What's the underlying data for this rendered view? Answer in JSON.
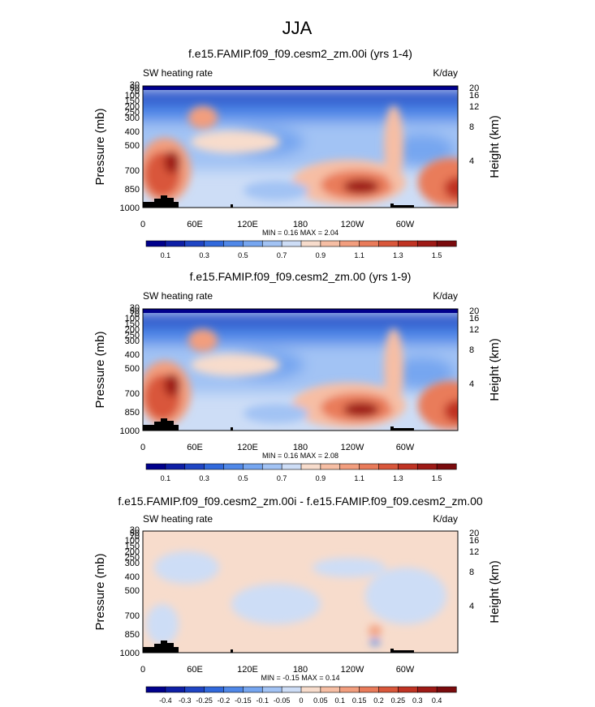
{
  "figure_title": "JJA",
  "chart_data": [
    {
      "type": "heatmap",
      "title": "f.e15.FAMIP.f09_f09.cesm2_zm.00i (yrs 1-4)",
      "left_label": "SW heating rate",
      "units": "K/day",
      "xlabel": "",
      "ylabel": "Pressure (mb)",
      "y2label": "Height (km)",
      "xlim": [
        0,
        360
      ],
      "ylim": [
        1000,
        10
      ],
      "xticks": [
        "0",
        "60E",
        "120E",
        "180",
        "120W",
        "60W"
      ],
      "yticks": [
        "1000",
        "850",
        "700",
        "500",
        "400",
        "300",
        "250",
        "200",
        "150",
        "100",
        "70",
        "50",
        "30"
      ],
      "y2ticks": [
        "4",
        "8",
        "12",
        "16",
        "20"
      ],
      "stats": "MIN =   0.16  MAX =   2.04",
      "min": 0.16,
      "max": 2.04,
      "colorbar": {
        "labels": [
          "0.1",
          "0.3",
          "0.5",
          "0.7",
          "0.9",
          "1.1",
          "1.3",
          "1.5"
        ],
        "levels": [
          0.1,
          0.2,
          0.3,
          0.4,
          0.5,
          0.6,
          0.7,
          0.8,
          0.9,
          1.0,
          1.1,
          1.2,
          1.3,
          1.4,
          1.5
        ],
        "colors": [
          "#00008c",
          "#0e1fa6",
          "#1f45c4",
          "#3169dc",
          "#5088e8",
          "#76a6f0",
          "#a2c3f4",
          "#cdddf6",
          "#f7dccc",
          "#f6bea4",
          "#f29e7e",
          "#e97b5a",
          "#d9573b",
          "#c03323",
          "#9e1a16",
          "#7a0b0d"
        ]
      },
      "features": [
        {
          "desc": "stratospheric layer",
          "lon": [
            0,
            360
          ],
          "p": [
            30,
            110
          ],
          "value": 0.15
        },
        {
          "desc": "upper troposphere",
          "lon": [
            0,
            360
          ],
          "p": [
            110,
            250
          ],
          "value": 0.45
        },
        {
          "desc": "mid troposphere",
          "lon": [
            0,
            360
          ],
          "p": [
            250,
            700
          ],
          "value": 0.7
        },
        {
          "desc": "Sahara low-level max",
          "lon": 20,
          "p": 780,
          "value": 1.9
        },
        {
          "desc": "Tibet upper max",
          "lon": 75,
          "p": 300,
          "value": 1.2
        },
        {
          "desc": "SE Pacific stratocumulus max",
          "lon": 245,
          "p": 850,
          "value": 2.0
        },
        {
          "desc": "SE Atlantic stratocumulus max",
          "lon": 355,
          "p": 830,
          "value": 1.7
        }
      ]
    },
    {
      "type": "heatmap",
      "title": "f.e15.FAMIP.f09_f09.cesm2_zm.00 (yrs 1-9)",
      "left_label": "SW heating rate",
      "units": "K/day",
      "xlabel": "",
      "ylabel": "Pressure (mb)",
      "y2label": "Height (km)",
      "xlim": [
        0,
        360
      ],
      "ylim": [
        1000,
        10
      ],
      "xticks": [
        "0",
        "60E",
        "120E",
        "180",
        "120W",
        "60W"
      ],
      "yticks": [
        "1000",
        "850",
        "700",
        "500",
        "400",
        "300",
        "250",
        "200",
        "150",
        "100",
        "70",
        "50",
        "30"
      ],
      "y2ticks": [
        "4",
        "8",
        "12",
        "16",
        "20"
      ],
      "stats": "MIN =   0.16  MAX =   2.08",
      "min": 0.16,
      "max": 2.08,
      "colorbar": {
        "labels": [
          "0.1",
          "0.3",
          "0.5",
          "0.7",
          "0.9",
          "1.1",
          "1.3",
          "1.5"
        ],
        "levels": [
          0.1,
          0.2,
          0.3,
          0.4,
          0.5,
          0.6,
          0.7,
          0.8,
          0.9,
          1.0,
          1.1,
          1.2,
          1.3,
          1.4,
          1.5
        ],
        "colors": [
          "#00008c",
          "#0e1fa6",
          "#1f45c4",
          "#3169dc",
          "#5088e8",
          "#76a6f0",
          "#a2c3f4",
          "#cdddf6",
          "#f7dccc",
          "#f6bea4",
          "#f29e7e",
          "#e97b5a",
          "#d9573b",
          "#c03323",
          "#9e1a16",
          "#7a0b0d"
        ]
      },
      "features": [
        {
          "desc": "stratospheric layer",
          "lon": [
            0,
            360
          ],
          "p": [
            30,
            110
          ],
          "value": 0.15
        },
        {
          "desc": "upper troposphere",
          "lon": [
            0,
            360
          ],
          "p": [
            110,
            250
          ],
          "value": 0.45
        },
        {
          "desc": "mid troposphere",
          "lon": [
            0,
            360
          ],
          "p": [
            250,
            700
          ],
          "value": 0.7
        },
        {
          "desc": "Sahara low-level max",
          "lon": 20,
          "p": 780,
          "value": 1.9
        },
        {
          "desc": "Tibet upper max",
          "lon": 75,
          "p": 300,
          "value": 1.2
        },
        {
          "desc": "SE Pacific stratocumulus max",
          "lon": 245,
          "p": 850,
          "value": 2.0
        },
        {
          "desc": "SE Atlantic stratocumulus max",
          "lon": 355,
          "p": 830,
          "value": 1.7
        }
      ]
    },
    {
      "type": "heatmap",
      "title": "f.e15.FAMIP.f09_f09.cesm2_zm.00i - f.e15.FAMIP.f09_f09.cesm2_zm.00",
      "left_label": "SW heating rate",
      "units": "K/day",
      "xlabel": "",
      "ylabel": "Pressure (mb)",
      "y2label": "Height (km)",
      "xlim": [
        0,
        360
      ],
      "ylim": [
        1000,
        10
      ],
      "xticks": [
        "0",
        "60E",
        "120E",
        "180",
        "120W",
        "60W"
      ],
      "yticks": [
        "1000",
        "850",
        "700",
        "500",
        "400",
        "300",
        "250",
        "200",
        "150",
        "100",
        "70",
        "50",
        "30"
      ],
      "y2ticks": [
        "4",
        "8",
        "12",
        "16",
        "20"
      ],
      "stats": "MIN =  -0.15  MAX =   0.14",
      "min": -0.15,
      "max": 0.14,
      "colorbar": {
        "labels": [
          "-0.4",
          "-0.3",
          "-0.25",
          "-0.2",
          "-0.15",
          "-0.1",
          "-0.05",
          "0",
          "0.05",
          "0.1",
          "0.15",
          "0.2",
          "0.25",
          "0.3",
          "0.4"
        ],
        "levels": [
          -0.4,
          -0.3,
          -0.25,
          -0.2,
          -0.15,
          -0.1,
          -0.05,
          0,
          0.05,
          0.1,
          0.15,
          0.2,
          0.25,
          0.3,
          0.4
        ],
        "colors": [
          "#00008c",
          "#0e1fa6",
          "#1f45c4",
          "#3169dc",
          "#5088e8",
          "#76a6f0",
          "#a2c3f4",
          "#cdddf6",
          "#f7dccc",
          "#f6bea4",
          "#f29e7e",
          "#e97b5a",
          "#d9573b",
          "#c03323",
          "#9e1a16",
          "#7a0b0d"
        ]
      },
      "features": [
        {
          "desc": "near-zero background",
          "lon": [
            0,
            360
          ],
          "p": [
            30,
            1000
          ],
          "value": 0.0
        },
        {
          "desc": "weak positive patch",
          "lon": 255,
          "p": 830,
          "value": 0.12
        },
        {
          "desc": "weak negative patch",
          "lon": 262,
          "p": 880,
          "value": -0.14
        }
      ]
    }
  ]
}
